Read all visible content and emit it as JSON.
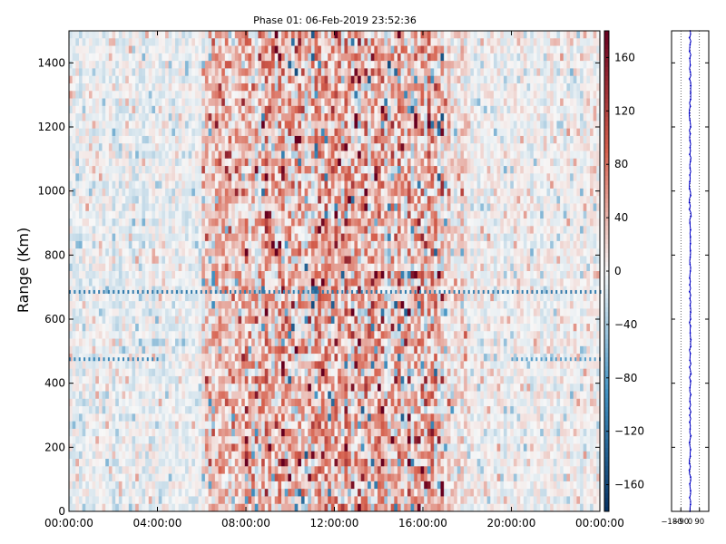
{
  "chart_data": [
    {
      "type": "heatmap",
      "title": "Phase 01: 06-Feb-2019 23:52:36",
      "xlabel": "",
      "ylabel": "Range (Km)",
      "x_ticks": [
        "00:00:00",
        "04:00:00",
        "08:00:00",
        "12:00:00",
        "16:00:00",
        "20:00:00",
        "00:00:00"
      ],
      "x_range_hours": [
        0,
        24
      ],
      "y_ticks": [
        0,
        200,
        400,
        600,
        800,
        1000,
        1200,
        1400
      ],
      "ylim": [
        0,
        1500
      ],
      "colorbar": {
        "ticks": [
          "160",
          "120",
          "80",
          "40",
          "0",
          "−40",
          "−80",
          "−120",
          "−160"
        ],
        "range": [
          -180,
          180
        ],
        "colormap": "RdBu_r",
        "colors": {
          "min": "#053061",
          "low": "#4393c3",
          "mid": "#f7f7f7",
          "high": "#d6604d",
          "max": "#67001f"
        }
      },
      "activity_profile": [
        {
          "hours": [
            0,
            6
          ],
          "mean": -5,
          "spread": 25
        },
        {
          "hours": [
            6,
            8
          ],
          "mean": 25,
          "spread": 55
        },
        {
          "hours": [
            8,
            17
          ],
          "mean": 35,
          "spread": 80
        },
        {
          "hours": [
            17,
            18
          ],
          "mean": 20,
          "spread": 45
        },
        {
          "hours": [
            18,
            24
          ],
          "mean": 0,
          "spread": 25
        }
      ],
      "horizontal_streaks": [
        {
          "range_km": 685,
          "value": -110,
          "hours": [
            0,
            24
          ]
        },
        {
          "range_km": 475,
          "value": -100,
          "hours": [
            0,
            4
          ]
        },
        {
          "range_km": 475,
          "value": -80,
          "hours": [
            20,
            24
          ]
        }
      ],
      "grid": false
    },
    {
      "type": "line",
      "x_ticks": [
        "−180",
        "−90",
        "0",
        "90"
      ],
      "xlim": [
        -180,
        180
      ],
      "ylim": [
        0,
        1500
      ],
      "grid": "vertical dotted",
      "series_color": "#0000cc",
      "profile_center": 0,
      "profile_spread": 8
    }
  ]
}
